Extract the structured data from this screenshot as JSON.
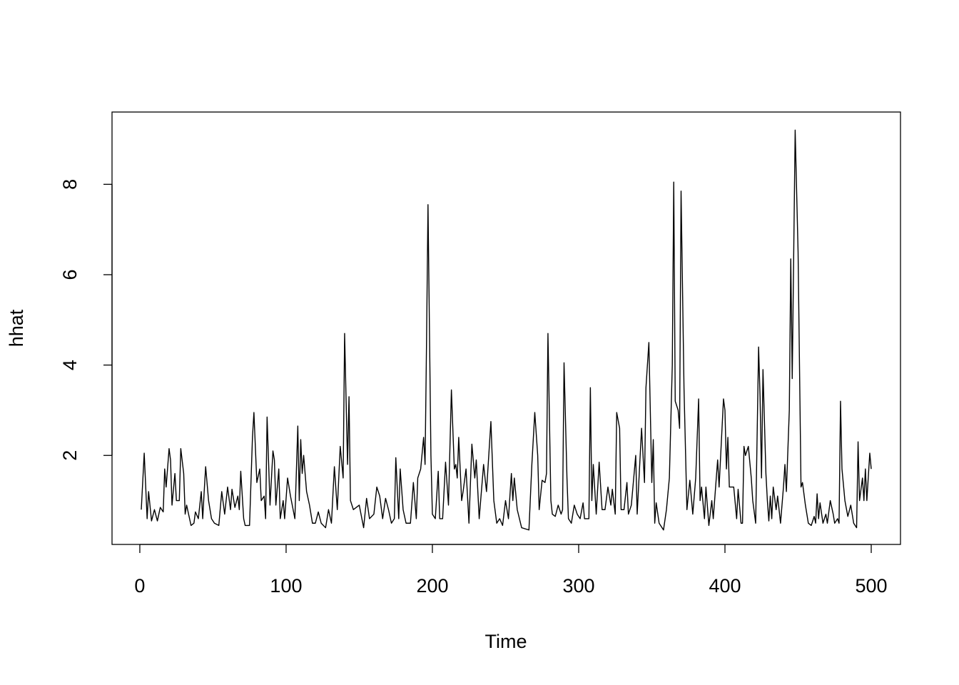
{
  "chart_data": {
    "type": "line",
    "x_label": "Time",
    "y_label": "hhat",
    "xlim": [
      -19,
      520
    ],
    "ylim": [
      0.03,
      9.6
    ],
    "xticks": [
      0,
      100,
      200,
      300,
      400,
      500
    ],
    "yticks": [
      2,
      4,
      6,
      8
    ],
    "color": "#000000",
    "x": [
      1,
      3,
      5,
      6,
      8,
      10,
      12,
      14,
      16,
      17,
      18,
      20,
      21,
      22,
      24,
      25,
      27,
      28,
      30,
      31,
      32,
      35,
      37,
      38,
      40,
      42,
      43,
      44,
      45,
      47,
      49,
      51,
      54,
      56,
      58,
      60,
      62,
      63,
      65,
      67,
      68,
      69,
      71,
      72,
      75,
      77,
      78,
      80,
      82,
      83,
      85,
      86,
      87,
      89,
      91,
      92,
      93,
      95,
      96,
      98,
      99,
      101,
      103,
      106,
      108,
      109,
      110,
      111,
      112,
      114,
      116,
      118,
      120,
      122,
      124,
      127,
      129,
      131,
      133,
      135,
      137,
      139,
      140,
      142,
      143,
      144,
      146,
      150,
      153,
      155,
      157,
      160,
      162,
      164,
      166,
      168,
      170,
      172,
      174,
      175,
      177,
      178,
      180,
      182,
      185,
      187,
      189,
      190,
      192,
      194,
      195,
      196,
      197,
      199,
      200,
      202,
      204,
      205,
      207,
      209,
      211,
      213,
      215,
      216,
      217,
      218,
      220,
      221,
      223,
      225,
      227,
      229,
      230,
      232,
      233,
      235,
      237,
      240,
      242,
      244,
      246,
      248,
      250,
      252,
      254,
      255,
      256,
      258,
      261,
      266,
      268,
      270,
      272,
      273,
      275,
      277,
      278,
      279,
      281,
      282,
      284,
      286,
      288,
      289,
      290,
      292,
      293,
      295,
      297,
      299,
      301,
      303,
      304,
      307,
      308,
      309,
      310,
      312,
      314,
      316,
      318,
      320,
      322,
      323,
      325,
      326,
      328,
      329,
      331,
      333,
      334,
      336,
      339,
      340,
      343,
      345,
      346,
      348,
      350,
      351,
      352,
      353,
      355,
      358,
      360,
      362,
      364,
      365,
      366,
      368,
      369,
      370,
      372,
      374,
      376,
      378,
      380,
      382,
      383,
      384,
      386,
      387,
      389,
      391,
      392,
      395,
      396,
      399,
      400,
      401,
      402,
      403,
      406,
      408,
      409,
      411,
      412,
      413,
      414,
      416,
      418,
      419,
      421,
      423,
      424,
      425,
      426,
      428,
      429,
      430,
      431,
      432,
      433,
      435,
      436,
      438,
      440,
      441,
      442,
      444,
      445,
      446,
      448,
      450,
      452,
      453,
      455,
      457,
      459,
      461,
      462,
      463,
      464,
      465,
      467,
      469,
      470,
      472,
      474,
      475,
      477,
      478,
      479,
      480,
      482,
      484,
      486,
      488,
      490,
      491,
      492,
      494,
      495,
      496,
      497,
      499,
      500
    ],
    "values": [
      0.8,
      2.05,
      0.6,
      1.2,
      0.55,
      0.8,
      0.55,
      0.85,
      0.75,
      1.7,
      1.3,
      2.15,
      1.9,
      0.9,
      1.6,
      1.0,
      1.0,
      2.15,
      1.6,
      0.7,
      0.9,
      0.45,
      0.5,
      0.75,
      0.6,
      1.2,
      0.6,
      1.2,
      1.75,
      1.0,
      0.6,
      0.5,
      0.45,
      1.2,
      0.7,
      1.3,
      0.8,
      1.25,
      0.85,
      1.1,
      0.8,
      1.65,
      0.6,
      0.45,
      0.45,
      2.4,
      2.95,
      1.4,
      1.7,
      1.0,
      1.1,
      0.6,
      2.85,
      0.9,
      2.1,
      1.9,
      0.9,
      1.7,
      0.6,
      1.0,
      0.6,
      1.5,
      1.1,
      0.6,
      2.65,
      1.0,
      2.35,
      1.6,
      2.0,
      1.2,
      0.9,
      0.5,
      0.5,
      0.75,
      0.5,
      0.4,
      0.8,
      0.5,
      1.75,
      0.8,
      2.2,
      1.5,
      4.7,
      1.8,
      3.3,
      1.0,
      0.8,
      0.9,
      0.4,
      1.05,
      0.6,
      0.7,
      1.3,
      1.1,
      0.6,
      1.05,
      0.8,
      0.5,
      0.6,
      1.95,
      0.6,
      1.7,
      0.8,
      0.5,
      0.5,
      1.4,
      0.6,
      1.5,
      1.7,
      2.4,
      1.8,
      4.5,
      7.55,
      2.0,
      0.7,
      0.6,
      1.65,
      0.6,
      0.6,
      1.85,
      0.9,
      3.45,
      1.7,
      1.8,
      1.5,
      2.4,
      1.0,
      1.2,
      1.7,
      0.5,
      2.25,
      1.5,
      1.9,
      0.6,
      1.0,
      1.8,
      1.2,
      2.75,
      1.0,
      0.5,
      0.6,
      0.45,
      1.0,
      0.6,
      1.6,
      1.0,
      1.5,
      0.8,
      0.4,
      0.35,
      1.8,
      2.95,
      2.0,
      0.8,
      1.45,
      1.4,
      1.6,
      4.7,
      1.0,
      0.7,
      0.65,
      0.9,
      0.7,
      0.8,
      4.05,
      1.5,
      0.6,
      0.5,
      0.9,
      0.7,
      0.6,
      0.95,
      0.6,
      0.6,
      3.5,
      1.0,
      1.8,
      0.7,
      1.85,
      0.8,
      0.8,
      1.3,
      0.9,
      1.25,
      0.7,
      2.95,
      2.6,
      0.8,
      0.8,
      1.4,
      0.7,
      0.9,
      2.0,
      0.7,
      2.6,
      1.4,
      3.5,
      4.5,
      1.4,
      2.35,
      0.5,
      0.95,
      0.5,
      0.35,
      0.8,
      1.5,
      4.0,
      8.05,
      3.2,
      3.0,
      2.6,
      7.85,
      3.5,
      0.8,
      1.45,
      0.7,
      1.5,
      3.25,
      1.0,
      1.3,
      0.6,
      1.3,
      0.45,
      1.0,
      0.6,
      1.9,
      1.3,
      3.25,
      3.0,
      1.7,
      2.4,
      1.3,
      1.3,
      0.6,
      1.25,
      0.5,
      0.5,
      2.2,
      2.0,
      2.2,
      1.5,
      1.0,
      0.5,
      4.4,
      3.3,
      1.5,
      3.9,
      1.6,
      1.0,
      0.55,
      1.1,
      0.6,
      1.3,
      0.8,
      1.1,
      0.5,
      1.3,
      1.8,
      1.2,
      3.0,
      6.35,
      3.7,
      9.2,
      6.5,
      1.3,
      1.4,
      0.9,
      0.5,
      0.45,
      0.65,
      0.5,
      1.15,
      0.6,
      0.95,
      0.5,
      0.7,
      0.5,
      1.0,
      0.7,
      0.5,
      0.6,
      0.5,
      3.2,
      1.7,
      1.0,
      0.65,
      0.9,
      0.5,
      0.4,
      2.3,
      1.0,
      1.5,
      1.0,
      1.7,
      1.0,
      2.05,
      1.7
    ]
  }
}
